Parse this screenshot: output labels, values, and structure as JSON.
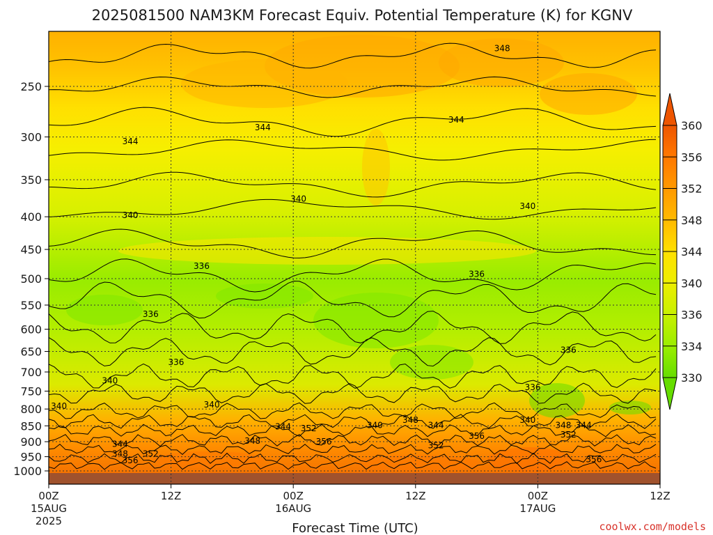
{
  "chart_data": {
    "type": "heatmap",
    "title": "2025081500 NAM3KM Forecast Equiv. Potential Temperature (K) for KGNV",
    "xlabel": "Forecast Time (UTC)",
    "ylabel": "",
    "y_log_scale": true,
    "y_inverted": true,
    "ylim": [
      1000,
      200
    ],
    "y_ticks": [
      250,
      300,
      350,
      400,
      450,
      500,
      550,
      600,
      650,
      700,
      750,
      800,
      850,
      900,
      950,
      1000
    ],
    "x_ticks": [
      {
        "hour": 0,
        "label": "00Z",
        "sub": "15AUG",
        "sub2": "2025"
      },
      {
        "hour": 12,
        "label": "12Z",
        "sub": "",
        "sub2": ""
      },
      {
        "hour": 24,
        "label": "00Z",
        "sub": "16AUG",
        "sub2": ""
      },
      {
        "hour": 36,
        "label": "12Z",
        "sub": "",
        "sub2": ""
      },
      {
        "hour": 48,
        "label": "00Z",
        "sub": "17AUG",
        "sub2": ""
      },
      {
        "hour": 60,
        "label": "12Z",
        "sub": "",
        "sub2": ""
      }
    ],
    "xlim_hours": [
      0,
      60
    ],
    "grid": true,
    "colorbar": {
      "labels": [
        "330",
        "334",
        "336",
        "340",
        "344",
        "348",
        "352",
        "356",
        "360"
      ],
      "colors": [
        "#66dd00",
        "#99ee00",
        "#c8f000",
        "#eeee00",
        "#ffdd00",
        "#ffbb00",
        "#ff9900",
        "#ff7700",
        "#ee5500"
      ]
    },
    "surface_band_color": "#a0522d",
    "contour_labels": [
      {
        "text": "348",
        "hour": 44.5,
        "p": 218
      },
      {
        "text": "344",
        "hour": 40.0,
        "p": 282
      },
      {
        "text": "344",
        "hour": 21.0,
        "p": 290
      },
      {
        "text": "344",
        "hour": 8.0,
        "p": 305
      },
      {
        "text": "340",
        "hour": 24.5,
        "p": 375
      },
      {
        "text": "340",
        "hour": 8.0,
        "p": 398
      },
      {
        "text": "340",
        "hour": 47.0,
        "p": 385
      },
      {
        "text": "336",
        "hour": 15.0,
        "p": 478
      },
      {
        "text": "336",
        "hour": 42.0,
        "p": 492
      },
      {
        "text": "336",
        "hour": 10.0,
        "p": 568
      },
      {
        "text": "336",
        "hour": 12.5,
        "p": 676
      },
      {
        "text": "336",
        "hour": 51.0,
        "p": 647
      },
      {
        "text": "336",
        "hour": 47.5,
        "p": 740
      },
      {
        "text": "340",
        "hour": 6.0,
        "p": 722
      },
      {
        "text": "340",
        "hour": 1.0,
        "p": 792
      },
      {
        "text": "340",
        "hour": 16.0,
        "p": 788
      },
      {
        "text": "348",
        "hour": 35.5,
        "p": 832
      },
      {
        "text": "344",
        "hour": 23.0,
        "p": 853
      },
      {
        "text": "352",
        "hour": 25.5,
        "p": 858
      },
      {
        "text": "340",
        "hour": 32.0,
        "p": 848
      },
      {
        "text": "344",
        "hour": 38.0,
        "p": 848
      },
      {
        "text": "340",
        "hour": 47.0,
        "p": 832
      },
      {
        "text": "348",
        "hour": 50.5,
        "p": 848
      },
      {
        "text": "344",
        "hour": 52.5,
        "p": 848
      },
      {
        "text": "352",
        "hour": 51.0,
        "p": 878
      },
      {
        "text": "356",
        "hour": 42.0,
        "p": 882
      },
      {
        "text": "352",
        "hour": 38.0,
        "p": 912
      },
      {
        "text": "356",
        "hour": 27.0,
        "p": 900
      },
      {
        "text": "348",
        "hour": 20.0,
        "p": 898
      },
      {
        "text": "344",
        "hour": 7.0,
        "p": 908
      },
      {
        "text": "348",
        "hour": 7.0,
        "p": 940
      },
      {
        "text": "352",
        "hour": 10.0,
        "p": 940
      },
      {
        "text": "356",
        "hour": 8.0,
        "p": 963
      },
      {
        "text": "356",
        "hour": 53.5,
        "p": 960
      }
    ]
  },
  "credit": "coolwx.com/models"
}
